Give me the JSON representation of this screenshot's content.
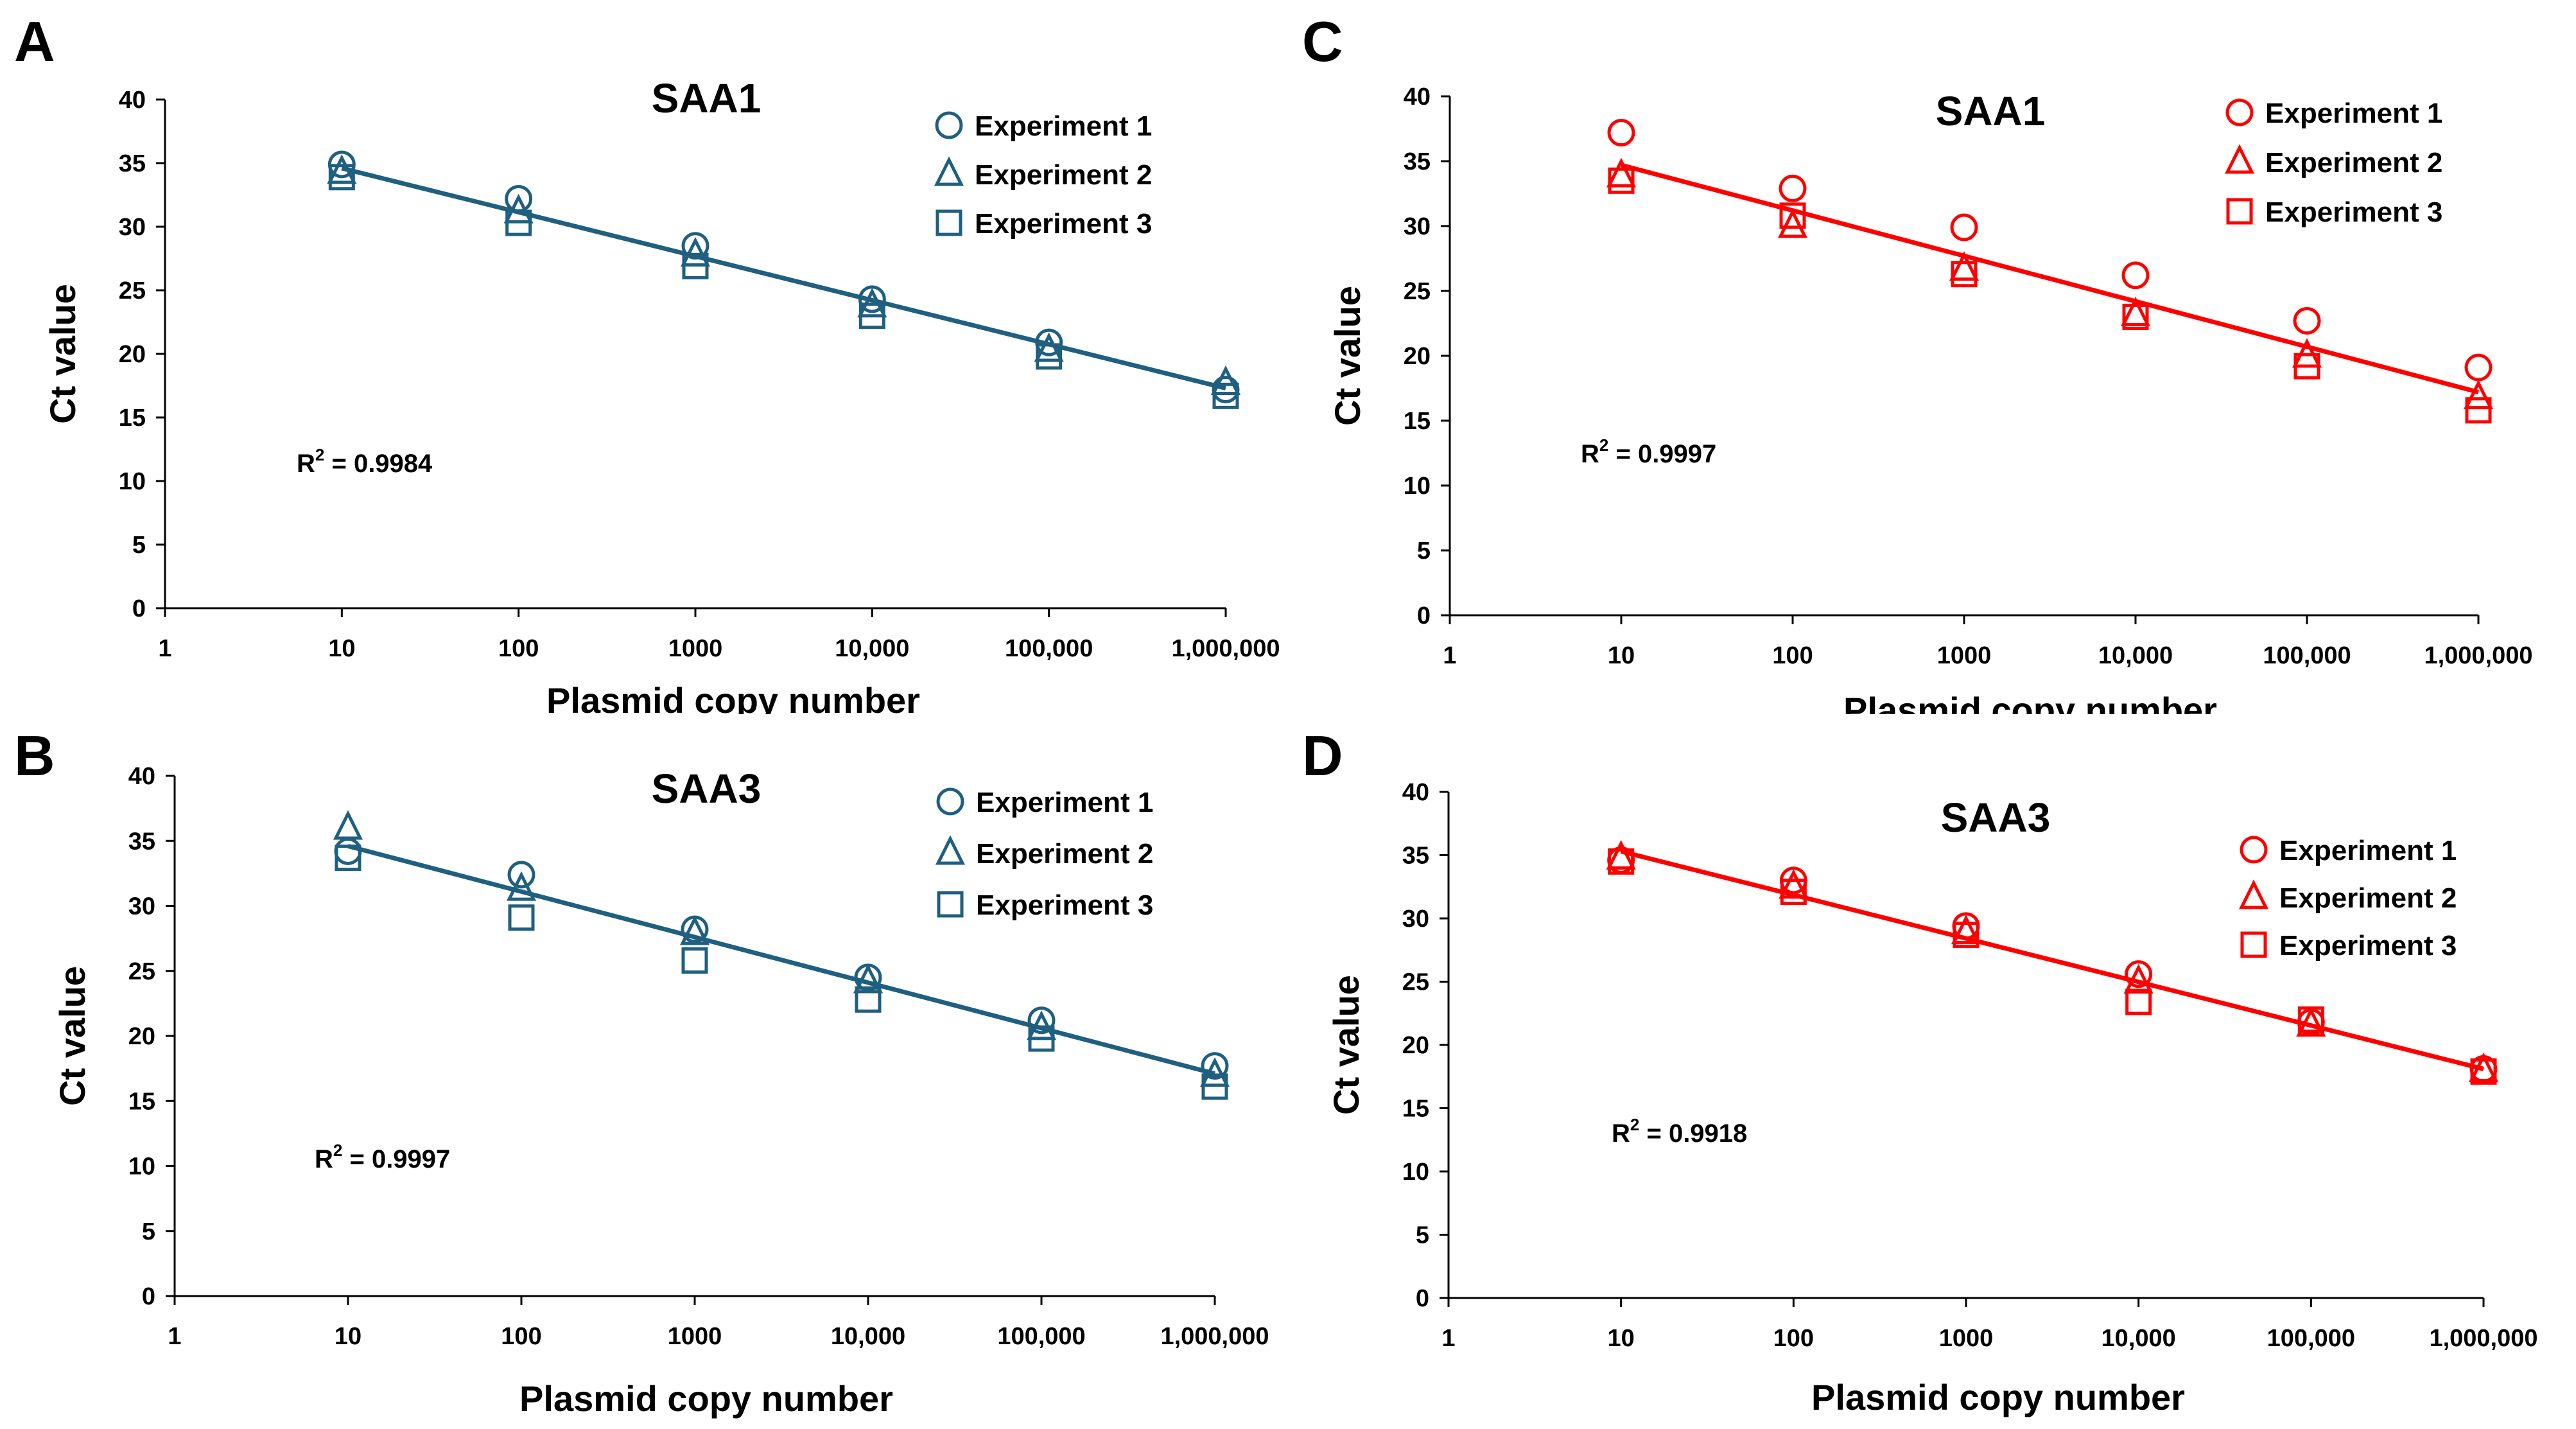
{
  "figure": {
    "marker_legend": [
      "circle",
      "triangle",
      "square"
    ]
  },
  "chart_data": [
    {
      "panel_label": "A",
      "type": "scatter",
      "title": "SAA1",
      "xlabel": "Plasmid copy number",
      "ylabel": "Ct value",
      "xscale": "log10",
      "xlim": [
        1,
        1000000
      ],
      "ylim": [
        0,
        40
      ],
      "x_tick_labels": [
        "1",
        "10",
        "100",
        "1000",
        "10,000",
        "100,000",
        "1,000,000"
      ],
      "y_tick_labels": [
        "0",
        "5",
        "10",
        "15",
        "20",
        "25",
        "30",
        "35",
        "40"
      ],
      "color": "#1f5f80",
      "legend_position": "top-right",
      "series": [
        {
          "name": "Experiment 1",
          "marker": "circle",
          "x": [
            10,
            100,
            1000,
            10000,
            100000,
            1000000
          ],
          "y": [
            34.9,
            32.2,
            28.5,
            24.3,
            20.9,
            17.2
          ]
        },
        {
          "name": "Experiment 2",
          "marker": "triangle",
          "x": [
            10,
            100,
            1000,
            10000,
            100000,
            1000000
          ],
          "y": [
            34.3,
            31.2,
            27.8,
            23.8,
            20.3,
            17.7
          ]
        },
        {
          "name": "Experiment 3",
          "marker": "square",
          "x": [
            10,
            100,
            1000,
            10000,
            100000,
            1000000
          ],
          "y": [
            33.9,
            30.3,
            26.9,
            23.0,
            19.8,
            16.7
          ]
        }
      ],
      "fit": {
        "x": [
          10,
          1000000
        ],
        "y": [
          34.6,
          17.3
        ]
      },
      "r2_prefix": "R",
      "r2_sup": "2",
      "r2_text": " = 0.9984"
    },
    {
      "panel_label": "B",
      "type": "scatter",
      "title": "SAA3",
      "xlabel": "Plasmid copy number",
      "ylabel": "Ct value",
      "xscale": "log10",
      "xlim": [
        1,
        1000000
      ],
      "ylim": [
        0,
        40
      ],
      "x_tick_labels": [
        "1",
        "10",
        "100",
        "1000",
        "10,000",
        "100,000",
        "1,000,000"
      ],
      "y_tick_labels": [
        "0",
        "5",
        "10",
        "15",
        "20",
        "25",
        "30",
        "35",
        "40"
      ],
      "color": "#1f5f80",
      "legend_position": "top-right",
      "series": [
        {
          "name": "Experiment 1",
          "marker": "circle",
          "x": [
            10,
            100,
            1000,
            10000,
            100000,
            1000000
          ],
          "y": [
            34.2,
            32.4,
            28.2,
            24.5,
            21.2,
            17.7
          ]
        },
        {
          "name": "Experiment 2",
          "marker": "triangle",
          "x": [
            10,
            100,
            1000,
            10000,
            100000,
            1000000
          ],
          "y": [
            36.0,
            31.3,
            27.9,
            24.2,
            20.6,
            17.0
          ]
        },
        {
          "name": "Experiment 3",
          "marker": "square",
          "x": [
            10,
            100,
            1000,
            10000,
            100000,
            1000000
          ],
          "y": [
            33.7,
            29.1,
            25.8,
            22.8,
            19.8,
            16.1
          ]
        }
      ],
      "fit": {
        "x": [
          10,
          1000000
        ],
        "y": [
          34.6,
          17.1
        ]
      },
      "r2_prefix": "R",
      "r2_sup": "2",
      "r2_text": " = 0.9997"
    },
    {
      "panel_label": "C",
      "type": "scatter",
      "title": "SAA1",
      "xlabel": "Plasmid  copy number",
      "ylabel": "Ct value",
      "xscale": "log10",
      "xlim": [
        1,
        1000000
      ],
      "ylim": [
        0,
        40
      ],
      "x_tick_labels": [
        "1",
        "10",
        "100",
        "1000",
        "10,000",
        "100,000",
        "1,000,000"
      ],
      "y_tick_labels": [
        "0",
        "5",
        "10",
        "15",
        "20",
        "25",
        "30",
        "35",
        "40"
      ],
      "color": "#ff0000",
      "legend_position": "top-right",
      "series": [
        {
          "name": "Experiment 1",
          "marker": "circle",
          "x": [
            10,
            100,
            1000,
            10000,
            100000,
            1000000
          ],
          "y": [
            37.2,
            32.9,
            29.9,
            26.2,
            22.7,
            19.1
          ]
        },
        {
          "name": "Experiment 2",
          "marker": "triangle",
          "x": [
            10,
            100,
            1000,
            10000,
            100000,
            1000000
          ],
          "y": [
            33.9,
            30.0,
            26.7,
            23.2,
            20.0,
            16.8
          ]
        },
        {
          "name": "Experiment 3",
          "marker": "square",
          "x": [
            10,
            100,
            1000,
            10000,
            100000,
            1000000
          ],
          "y": [
            33.5,
            30.8,
            26.3,
            23.0,
            19.2,
            15.8
          ]
        }
      ],
      "fit": {
        "x": [
          10,
          1000000
        ],
        "y": [
          34.7,
          17.2
        ]
      },
      "r2_prefix": "R",
      "r2_sup": "2",
      "r2_text": " = 0.9997"
    },
    {
      "panel_label": "D",
      "type": "scatter",
      "title": "SAA3",
      "xlabel": "Plasmid copy number",
      "ylabel": "Ct value",
      "xscale": "log10",
      "xlim": [
        1,
        1000000
      ],
      "ylim": [
        0,
        40
      ],
      "x_tick_labels": [
        "1",
        "10",
        "100",
        "1000",
        "10,000",
        "100,000",
        "1,000,000"
      ],
      "y_tick_labels": [
        "0",
        "5",
        "10",
        "15",
        "20",
        "25",
        "30",
        "35",
        "40"
      ],
      "color": "#ff0000",
      "legend_position": "top-right",
      "series": [
        {
          "name": "Experiment 1",
          "marker": "circle",
          "x": [
            10,
            100,
            1000,
            10000,
            100000,
            1000000
          ],
          "y": [
            34.6,
            33.0,
            29.4,
            25.6,
            21.8,
            18.1
          ]
        },
        {
          "name": "Experiment 2",
          "marker": "triangle",
          "x": [
            10,
            100,
            1000,
            10000,
            100000,
            1000000
          ],
          "y": [
            34.8,
            32.5,
            28.9,
            25.0,
            21.6,
            18.0
          ]
        },
        {
          "name": "Experiment 3",
          "marker": "square",
          "x": [
            10,
            100,
            1000,
            10000,
            100000,
            1000000
          ],
          "y": [
            34.5,
            32.1,
            28.7,
            23.4,
            22.0,
            17.9
          ]
        }
      ],
      "fit": {
        "x": [
          10,
          1000000
        ],
        "y": [
          35.3,
          18.1
        ]
      },
      "r2_prefix": "R",
      "r2_sup": "2",
      "r2_text": " = 0.9918"
    }
  ]
}
